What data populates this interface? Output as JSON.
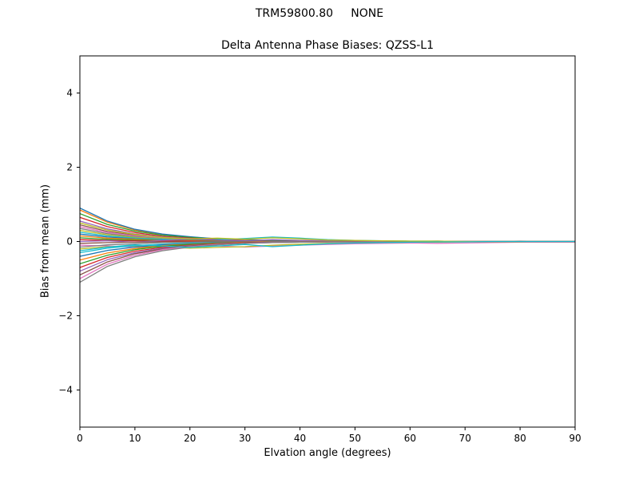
{
  "figure": {
    "suptitle": "TRM59800.80     NONE",
    "axes_title": "Delta Antenna Phase Biases: QZSS-L1",
    "xlabel": "Elvation angle (degrees)",
    "ylabel": "Bias from mean (mm)",
    "background": "#ffffff",
    "axis_color": "#000000"
  },
  "chart_data": {
    "type": "line",
    "suptitle": "TRM59800.80     NONE",
    "title": "Delta Antenna Phase Biases: QZSS-L1",
    "xlabel": "Elvation angle (degrees)",
    "ylabel": "Bias from mean (mm)",
    "xlim": [
      0,
      90
    ],
    "ylim": [
      -5,
      5
    ],
    "xticks": [
      0,
      10,
      20,
      30,
      40,
      50,
      60,
      70,
      80,
      90
    ],
    "yticks": [
      -4,
      -2,
      0,
      2,
      4
    ],
    "grid": false,
    "legend": "none",
    "x": [
      0,
      5,
      10,
      15,
      20,
      25,
      30,
      35,
      40,
      45,
      50,
      55,
      60,
      65,
      70,
      75,
      80,
      85,
      90
    ],
    "series": [
      {
        "name": "line-01",
        "color": "#ff7f0e",
        "values": [
          0.85,
          0.52,
          0.31,
          0.19,
          0.12,
          0.07,
          0.04,
          0.03,
          0.02,
          0.01,
          0.01,
          0.0,
          0.0,
          0.0,
          0.0,
          0.0,
          0.0,
          0.0,
          0.0
        ]
      },
      {
        "name": "line-02",
        "color": "#1f77b4",
        "values": [
          0.9,
          0.55,
          0.33,
          0.2,
          0.13,
          0.07,
          0.05,
          0.03,
          0.02,
          0.01,
          0.01,
          0.01,
          0.0,
          0.0,
          0.0,
          0.0,
          0.0,
          0.0,
          0.0
        ]
      },
      {
        "name": "line-03",
        "color": "#2ca02c",
        "values": [
          0.75,
          0.46,
          0.28,
          0.17,
          0.11,
          0.06,
          0.04,
          0.02,
          0.02,
          0.01,
          0.01,
          0.0,
          0.0,
          0.0,
          0.0,
          0.0,
          0.0,
          0.0,
          0.0
        ]
      },
      {
        "name": "line-04",
        "color": "#d62728",
        "values": [
          0.65,
          0.4,
          0.24,
          0.14,
          0.09,
          0.05,
          0.03,
          0.02,
          0.01,
          0.01,
          0.01,
          0.0,
          0.0,
          0.0,
          0.0,
          0.0,
          0.0,
          0.0,
          0.0
        ]
      },
      {
        "name": "line-05",
        "color": "#9467bd",
        "values": [
          0.55,
          0.34,
          0.2,
          0.12,
          0.08,
          0.04,
          0.03,
          0.02,
          0.01,
          0.01,
          0.0,
          0.0,
          0.0,
          0.0,
          0.0,
          0.0,
          0.0,
          0.0,
          0.0
        ]
      },
      {
        "name": "line-06",
        "color": "#8c564b",
        "values": [
          0.45,
          0.27,
          0.17,
          0.1,
          0.06,
          0.04,
          0.02,
          0.01,
          0.01,
          0.0,
          0.0,
          0.0,
          0.0,
          0.0,
          0.0,
          0.0,
          0.0,
          0.0,
          0.0
        ]
      },
      {
        "name": "line-07",
        "color": "#e377c2",
        "values": [
          0.4,
          0.24,
          0.15,
          0.09,
          0.06,
          0.03,
          0.02,
          0.01,
          0.01,
          0.0,
          0.0,
          0.0,
          0.0,
          0.0,
          0.0,
          0.0,
          0.0,
          0.0,
          0.0
        ]
      },
      {
        "name": "line-08",
        "color": "#7f7f7f",
        "values": [
          0.35,
          0.21,
          0.13,
          0.08,
          0.05,
          0.03,
          0.02,
          0.01,
          0.01,
          0.0,
          0.0,
          0.0,
          0.0,
          0.0,
          0.0,
          0.0,
          0.0,
          0.0,
          0.0
        ]
      },
      {
        "name": "line-09",
        "color": "#bcbd22",
        "values": [
          0.3,
          0.18,
          0.11,
          0.07,
          0.04,
          0.02,
          0.02,
          0.01,
          0.01,
          0.0,
          0.0,
          0.0,
          0.0,
          0.0,
          0.0,
          0.0,
          0.0,
          0.0,
          0.0
        ]
      },
      {
        "name": "line-10",
        "color": "#17becf",
        "values": [
          0.25,
          0.15,
          0.09,
          0.06,
          0.03,
          0.05,
          0.08,
          0.12,
          0.09,
          0.05,
          0.03,
          0.02,
          0.01,
          0.01,
          0.0,
          0.0,
          0.0,
          0.0,
          0.0
        ]
      },
      {
        "name": "line-11",
        "color": "#1f77b4",
        "values": [
          0.2,
          0.12,
          0.07,
          0.04,
          0.03,
          0.02,
          0.01,
          0.01,
          0.0,
          0.0,
          0.0,
          0.0,
          0.0,
          0.0,
          0.0,
          0.0,
          0.0,
          0.0,
          0.0
        ]
      },
      {
        "name": "line-12",
        "color": "#ff7f0e",
        "values": [
          0.15,
          0.09,
          0.06,
          0.03,
          0.02,
          0.01,
          0.01,
          0.0,
          0.0,
          0.0,
          0.0,
          0.0,
          0.0,
          0.0,
          0.0,
          0.0,
          0.0,
          0.0,
          0.0
        ]
      },
      {
        "name": "line-13",
        "color": "#2ca02c",
        "values": [
          0.1,
          0.06,
          0.04,
          0.02,
          0.05,
          0.03,
          0.02,
          0.04,
          0.02,
          0.01,
          0.01,
          0.0,
          0.0,
          0.0,
          0.0,
          0.0,
          0.0,
          0.0,
          0.0
        ]
      },
      {
        "name": "line-14",
        "color": "#d62728",
        "values": [
          0.05,
          0.03,
          0.02,
          0.01,
          0.01,
          0.0,
          0.0,
          0.0,
          0.0,
          0.0,
          0.0,
          0.0,
          0.0,
          0.0,
          0.0,
          0.0,
          0.0,
          0.0,
          0.0
        ]
      },
      {
        "name": "line-15",
        "color": "#9467bd",
        "values": [
          0.0,
          0.02,
          -0.02,
          0.03,
          0.06,
          0.04,
          0.02,
          0.05,
          0.03,
          0.02,
          0.01,
          0.01,
          0.0,
          0.01,
          0.0,
          0.0,
          0.01,
          0.0,
          0.0
        ]
      },
      {
        "name": "line-16",
        "color": "#8c564b",
        "values": [
          -0.05,
          -0.03,
          -0.02,
          -0.01,
          -0.01,
          0.0,
          0.0,
          0.0,
          0.0,
          0.0,
          0.0,
          0.0,
          0.0,
          0.0,
          0.0,
          0.0,
          0.0,
          0.0,
          0.0
        ]
      },
      {
        "name": "line-17",
        "color": "#e377c2",
        "values": [
          -0.1,
          -0.12,
          -0.15,
          -0.12,
          -0.1,
          -0.12,
          -0.15,
          -0.12,
          -0.1,
          -0.08,
          -0.06,
          -0.05,
          -0.04,
          -0.05,
          -0.04,
          -0.03,
          -0.02,
          -0.02,
          -0.02
        ]
      },
      {
        "name": "line-18",
        "color": "#7f7f7f",
        "values": [
          -0.15,
          -0.09,
          -0.06,
          -0.03,
          -0.02,
          -0.01,
          -0.01,
          0.0,
          0.0,
          0.0,
          0.0,
          0.0,
          0.0,
          0.0,
          0.0,
          0.0,
          0.0,
          0.0,
          0.0
        ]
      },
      {
        "name": "line-19",
        "color": "#bcbd22",
        "values": [
          -0.2,
          -0.14,
          -0.12,
          -0.15,
          -0.18,
          -0.16,
          -0.14,
          -0.1,
          -0.07,
          -0.05,
          -0.04,
          -0.03,
          -0.02,
          -0.02,
          -0.01,
          -0.01,
          -0.01,
          0.0,
          0.0
        ]
      },
      {
        "name": "line-20",
        "color": "#17becf",
        "values": [
          -0.3,
          -0.18,
          -0.11,
          -0.07,
          -0.04,
          -0.03,
          -0.02,
          -0.01,
          -0.01,
          0.0,
          0.0,
          0.0,
          0.0,
          0.0,
          0.0,
          0.0,
          0.0,
          0.0,
          0.0
        ]
      },
      {
        "name": "line-21",
        "color": "#1f77b4",
        "values": [
          -0.4,
          -0.24,
          -0.15,
          -0.09,
          -0.06,
          -0.03,
          -0.02,
          -0.01,
          -0.01,
          0.0,
          0.0,
          0.0,
          0.0,
          0.0,
          0.0,
          0.0,
          0.0,
          0.0,
          0.0
        ]
      },
      {
        "name": "line-22",
        "color": "#ff7f0e",
        "values": [
          -0.5,
          -0.31,
          -0.19,
          -0.11,
          -0.07,
          -0.04,
          -0.02,
          -0.01,
          -0.01,
          0.0,
          0.0,
          0.0,
          0.0,
          0.0,
          0.0,
          0.0,
          0.0,
          0.0,
          0.0
        ]
      },
      {
        "name": "line-23",
        "color": "#2ca02c",
        "values": [
          -0.6,
          -0.37,
          -0.22,
          -0.13,
          -0.08,
          -0.05,
          -0.03,
          -0.02,
          -0.01,
          -0.01,
          0.0,
          0.0,
          0.0,
          0.0,
          0.0,
          0.0,
          0.0,
          0.0,
          0.0
        ]
      },
      {
        "name": "line-24",
        "color": "#d62728",
        "values": [
          -0.7,
          -0.43,
          -0.26,
          -0.16,
          -0.1,
          -0.06,
          -0.03,
          -0.02,
          -0.01,
          -0.01,
          0.0,
          0.0,
          0.0,
          0.0,
          0.0,
          0.0,
          0.0,
          0.0,
          0.0
        ]
      },
      {
        "name": "line-25",
        "color": "#9467bd",
        "values": [
          -0.8,
          -0.49,
          -0.3,
          -0.18,
          -0.11,
          -0.07,
          -0.04,
          -0.02,
          -0.01,
          -0.01,
          -0.01,
          0.0,
          0.0,
          0.0,
          0.0,
          0.0,
          0.0,
          0.0,
          0.0
        ]
      },
      {
        "name": "line-26",
        "color": "#8c564b",
        "values": [
          -0.9,
          -0.55,
          -0.33,
          -0.2,
          -0.12,
          -0.07,
          -0.04,
          -0.03,
          -0.02,
          -0.01,
          -0.01,
          0.0,
          0.0,
          0.0,
          0.0,
          0.0,
          0.0,
          0.0,
          0.0
        ]
      },
      {
        "name": "line-27",
        "color": "#e377c2",
        "values": [
          -1.0,
          -0.61,
          -0.37,
          -0.22,
          -0.14,
          -0.08,
          -0.05,
          -0.03,
          -0.02,
          -0.01,
          -0.01,
          0.0,
          0.0,
          0.0,
          0.0,
          0.0,
          0.0,
          0.0,
          0.0
        ]
      },
      {
        "name": "line-28",
        "color": "#7f7f7f",
        "values": [
          -1.1,
          -0.67,
          -0.41,
          -0.25,
          -0.15,
          -0.09,
          -0.05,
          -0.03,
          -0.02,
          -0.01,
          -0.01,
          -0.01,
          0.0,
          0.0,
          0.0,
          0.0,
          0.0,
          0.0,
          0.0
        ]
      },
      {
        "name": "line-29",
        "color": "#bcbd22",
        "values": [
          0.5,
          0.31,
          0.19,
          0.11,
          0.07,
          0.09,
          0.06,
          0.1,
          0.07,
          0.04,
          0.03,
          0.02,
          0.01,
          0.01,
          0.0,
          0.0,
          0.0,
          0.0,
          0.0
        ]
      },
      {
        "name": "line-30",
        "color": "#17becf",
        "values": [
          -0.25,
          -0.15,
          -0.09,
          -0.12,
          -0.16,
          -0.12,
          -0.08,
          -0.14,
          -0.1,
          -0.06,
          -0.04,
          -0.03,
          -0.02,
          -0.01,
          -0.01,
          0.0,
          0.0,
          0.0,
          0.0
        ]
      }
    ]
  }
}
